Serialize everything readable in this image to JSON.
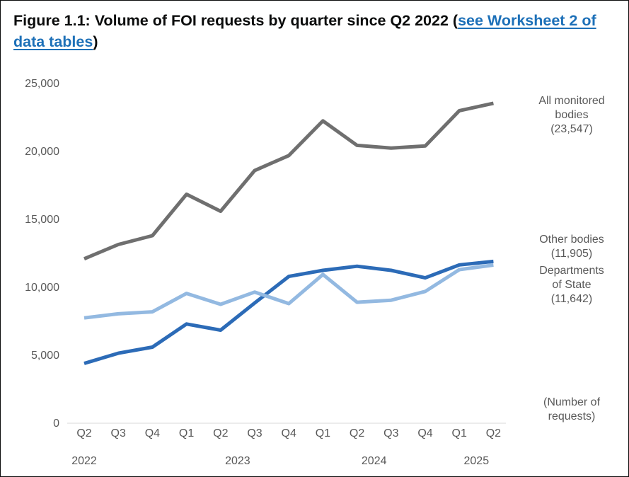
{
  "figure": {
    "title_prefix": "Figure 1.1: Volume of FOI requests by quarter since Q2 2022 (",
    "link_text": "see Worksheet 2 of data tables",
    "title_suffix": ")"
  },
  "chart_data": {
    "type": "line",
    "title": "Figure 1.1: Volume of FOI requests by quarter since Q2 2022",
    "categories": [
      "Q2",
      "Q3",
      "Q4",
      "Q1",
      "Q2",
      "Q3",
      "Q4",
      "Q1",
      "Q2",
      "Q3",
      "Q4",
      "Q1",
      "Q2"
    ],
    "year_labels": [
      {
        "label": "2022",
        "index": 0
      },
      {
        "label": "2023",
        "index": 4.5
      },
      {
        "label": "2024",
        "index": 8.5
      },
      {
        "label": "2025",
        "index": 11.5
      }
    ],
    "yticks": [
      0,
      5000,
      10000,
      15000,
      20000,
      25000
    ],
    "ytick_labels": [
      "0",
      "5,000",
      "10,000",
      "15,000",
      "20,000",
      "25,000"
    ],
    "ylim": [
      0,
      25000
    ],
    "grid": false,
    "ylabel_lines": [
      "(Number of",
      "requests)"
    ],
    "series": [
      {
        "name": "All monitored bodies",
        "label_lines": [
          "All monitored",
          "bodies",
          "(23,547)"
        ],
        "color": "#6f6f6f",
        "values": [
          12100,
          13150,
          13800,
          16850,
          15600,
          18600,
          19700,
          22250,
          20450,
          20250,
          20400,
          23000,
          23547
        ]
      },
      {
        "name": "Other bodies",
        "label_lines": [
          "Other bodies",
          "(11,905)"
        ],
        "color": "#2c6bb7",
        "values": [
          4400,
          5150,
          5600,
          7300,
          6850,
          8850,
          10800,
          11250,
          11550,
          11250,
          10700,
          11650,
          11905
        ]
      },
      {
        "name": "Departments of State",
        "label_lines": [
          "Departments",
          "of State",
          "(11,642)"
        ],
        "color": "#93b9e1",
        "values": [
          7750,
          8050,
          8200,
          9550,
          8750,
          9650,
          8800,
          10950,
          8900,
          9050,
          9700,
          11300,
          11642
        ]
      }
    ]
  }
}
